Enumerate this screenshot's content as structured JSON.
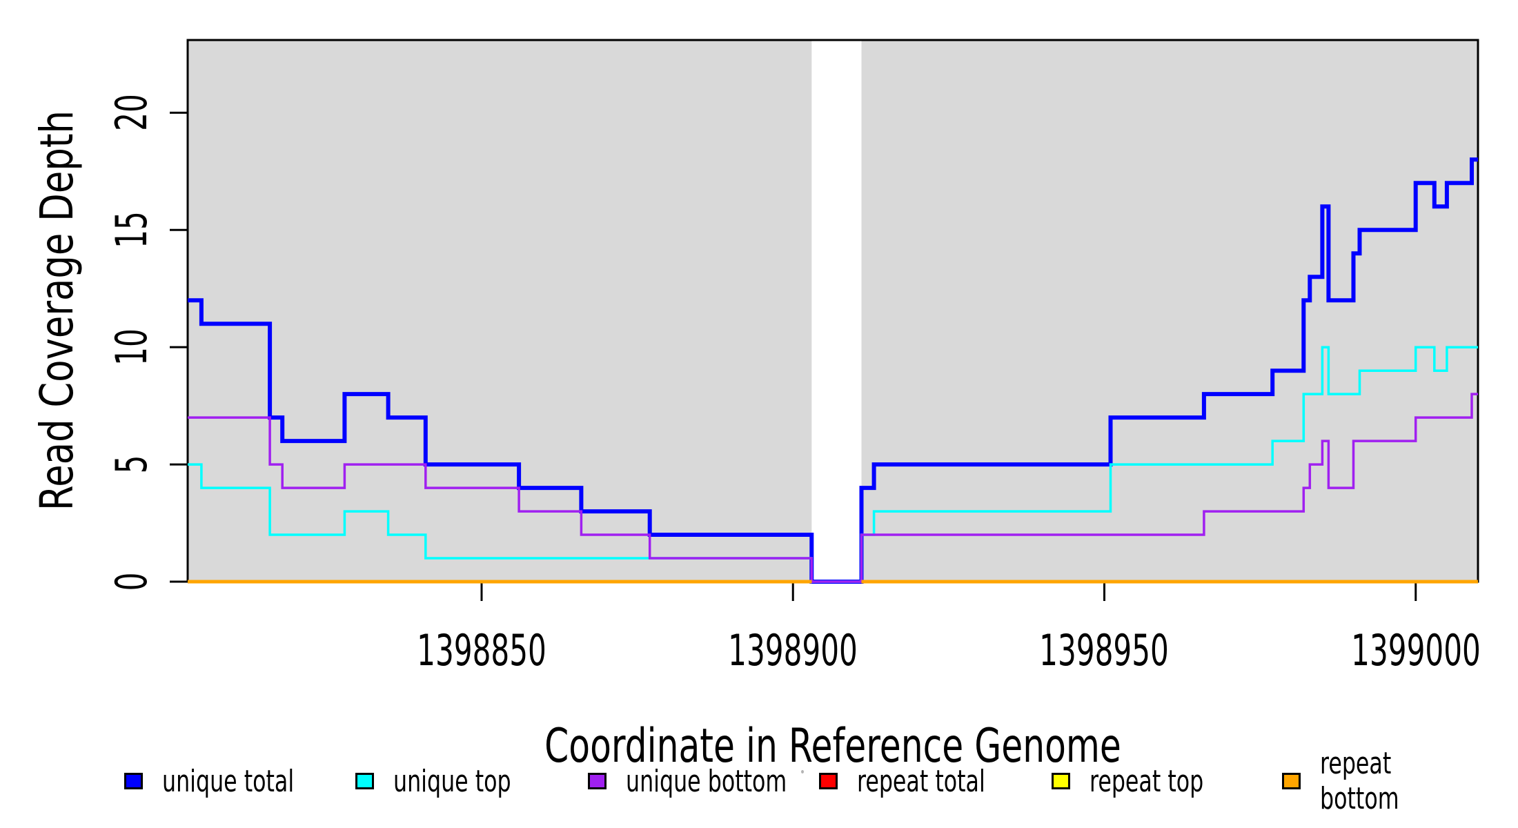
{
  "chart_data": {
    "type": "step-line",
    "title": "",
    "xlabel": "Coordinate in Reference Genome",
    "ylabel": "Read Coverage Depth",
    "x_ticks": [
      "1398850",
      "1398900",
      "1398950",
      "1399000"
    ],
    "y_ticks": [
      "0",
      "5",
      "10",
      "15",
      "20"
    ],
    "x_tick_values": [
      1398850,
      1398900,
      1398950,
      1399000
    ],
    "y_tick_values": [
      0,
      5,
      10,
      15,
      20
    ],
    "x_range": [
      1398802.8,
      1399010
    ],
    "y_range": [
      0,
      23.1
    ],
    "grid": "off",
    "plot_bg_color": "#D9D9D9",
    "axis_color": "#000000",
    "gap_band": {
      "start": 1398903,
      "end": 1398911,
      "fill": "#FFFFFF",
      "note": "coverage gap, all series at 0"
    },
    "series": [
      {
        "name": "unique total",
        "color": "#0000FF",
        "line_width": 6,
        "steps": [
          [
            1398802.8,
            12
          ],
          [
            1398805,
            11
          ],
          [
            1398816,
            7
          ],
          [
            1398818,
            6
          ],
          [
            1398828,
            8
          ],
          [
            1398835,
            7
          ],
          [
            1398841,
            5
          ],
          [
            1398856,
            4
          ],
          [
            1398866,
            3
          ],
          [
            1398877,
            2
          ],
          [
            1398903,
            0
          ],
          [
            1398911,
            4
          ],
          [
            1398913,
            5
          ],
          [
            1398951,
            7
          ],
          [
            1398966,
            8
          ],
          [
            1398977,
            9
          ],
          [
            1398982,
            12
          ],
          [
            1398983,
            13
          ],
          [
            1398985,
            16
          ],
          [
            1398986,
            12
          ],
          [
            1398990,
            14
          ],
          [
            1398991,
            15
          ],
          [
            1399000,
            17
          ],
          [
            1399003,
            16
          ],
          [
            1399005,
            17
          ],
          [
            1399009,
            18
          ]
        ]
      },
      {
        "name": "unique top",
        "color": "#00FFFF",
        "line_width": 3.5,
        "steps": [
          [
            1398802.8,
            5
          ],
          [
            1398805,
            4
          ],
          [
            1398816,
            2
          ],
          [
            1398828,
            3
          ],
          [
            1398835,
            2
          ],
          [
            1398841,
            1
          ],
          [
            1398903,
            0
          ],
          [
            1398911,
            2
          ],
          [
            1398913,
            3
          ],
          [
            1398951,
            5
          ],
          [
            1398977,
            6
          ],
          [
            1398982,
            8
          ],
          [
            1398985,
            10
          ],
          [
            1398986,
            8
          ],
          [
            1398991,
            9
          ],
          [
            1399000,
            10
          ],
          [
            1399003,
            9
          ],
          [
            1399005,
            10
          ]
        ]
      },
      {
        "name": "unique bottom",
        "color": "#A020F0",
        "line_width": 3.5,
        "steps": [
          [
            1398802.8,
            7
          ],
          [
            1398816,
            5
          ],
          [
            1398818,
            4
          ],
          [
            1398828,
            5
          ],
          [
            1398841,
            4
          ],
          [
            1398856,
            3
          ],
          [
            1398866,
            2
          ],
          [
            1398877,
            1
          ],
          [
            1398903,
            0
          ],
          [
            1398911,
            2
          ],
          [
            1398966,
            3
          ],
          [
            1398982,
            4
          ],
          [
            1398983,
            5
          ],
          [
            1398985,
            6
          ],
          [
            1398986,
            4
          ],
          [
            1398990,
            6
          ],
          [
            1399000,
            7
          ],
          [
            1399009,
            8
          ]
        ]
      },
      {
        "name": "repeat total",
        "color": "#FF0000",
        "line_width": 4.5,
        "value": 0,
        "segments": [
          [
            1398802.8,
            1398903
          ],
          [
            1398911,
            1399010
          ]
        ]
      },
      {
        "name": "repeat top",
        "color": "#FFFF00",
        "line_width": 4.5,
        "value": 0,
        "segments": [
          [
            1398802.8,
            1398903
          ],
          [
            1398911,
            1399010
          ]
        ]
      },
      {
        "name": "repeat bottom",
        "color": "#FFA500",
        "line_width": 5,
        "value": 0,
        "segments": [
          [
            1398802.8,
            1398903
          ],
          [
            1398911,
            1399010
          ]
        ]
      }
    ],
    "legend": {
      "position": "bottom",
      "items": [
        {
          "label": "unique total",
          "color": "#0000FF"
        },
        {
          "label": "unique top",
          "color": "#00FFFF"
        },
        {
          "label": "unique bottom",
          "color": "#A020F0"
        },
        {
          "label": "repeat total",
          "color": "#FF0000"
        },
        {
          "label": "repeat top",
          "color": "#FFFF00"
        },
        {
          "label": "repeat bottom",
          "color": "#FFA500"
        }
      ]
    }
  }
}
